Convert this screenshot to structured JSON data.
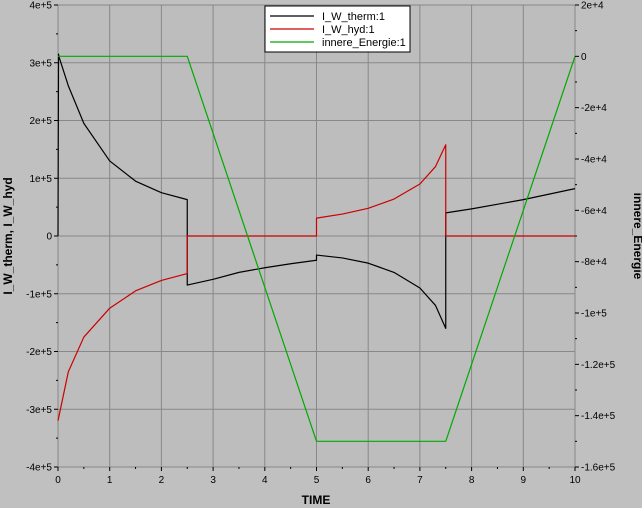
{
  "chart_data": {
    "type": "line",
    "xlabel": "TIME",
    "ylabel_left": "I_W_therm, I_W_hyd",
    "ylabel_right": "innere_Energie",
    "xlim": [
      0,
      10
    ],
    "ylim_left": [
      -400000,
      400000
    ],
    "ylim_right": [
      -160000,
      20000
    ],
    "x_ticks": [
      0,
      1,
      2,
      3,
      4,
      5,
      6,
      7,
      8,
      9,
      10
    ],
    "x_tick_labels": [
      "0",
      "1",
      "2",
      "3",
      "4",
      "5",
      "6",
      "7",
      "8",
      "9",
      "10"
    ],
    "y_left_ticks": [
      400000,
      300000,
      200000,
      100000,
      0,
      -100000,
      -200000,
      -300000,
      -400000
    ],
    "y_left_tick_labels": [
      "4e+5",
      "3e+5",
      "2e+5",
      "1e+5",
      "0",
      "-1e+5",
      "-2e+5",
      "-3e+5",
      "-4e+5"
    ],
    "y_right_ticks": [
      20000,
      0,
      -20000,
      -40000,
      -60000,
      -80000,
      -100000,
      -120000,
      -140000,
      -160000
    ],
    "y_right_tick_labels": [
      "2e+4",
      "0",
      "-2e+4",
      "-4e+4",
      "-6e+4",
      "-8e+4",
      "-1e+5",
      "-1.2e+5",
      "-1.4e+5",
      "-1.6e+5"
    ],
    "grid": true,
    "legend_position": "top-center",
    "series": [
      {
        "name": "I_W_therm:1",
        "color": "#000000",
        "axis": "left",
        "x": [
          0,
          0.01,
          0.02,
          0.2,
          0.5,
          1.0,
          1.5,
          2.0,
          2.5,
          2.5,
          3.0,
          3.5,
          4.0,
          4.5,
          5.0,
          5.0,
          5.5,
          6.0,
          6.5,
          7.0,
          7.3,
          7.5,
          7.5,
          8.0,
          9.0,
          10.0
        ],
        "y": [
          0,
          315000,
          310000,
          260000,
          195000,
          130000,
          95000,
          75000,
          63000,
          -85000,
          -75000,
          -63000,
          -55000,
          -48000,
          -42000,
          -33000,
          -38000,
          -47000,
          -63000,
          -90000,
          -120000,
          -160000,
          40000,
          47000,
          63000,
          82000
        ]
      },
      {
        "name": "I_W_hyd:1",
        "color": "#cc0000",
        "axis": "left",
        "x": [
          0,
          0.2,
          0.5,
          1.0,
          1.5,
          2.0,
          2.5,
          2.5,
          5.0,
          5.0,
          5.5,
          6.0,
          6.5,
          7.0,
          7.3,
          7.5,
          7.5,
          10.0
        ],
        "y": [
          -320000,
          -235000,
          -175000,
          -125000,
          -95000,
          -77000,
          -65000,
          0,
          0,
          31000,
          38000,
          48000,
          64000,
          90000,
          120000,
          158000,
          0,
          0
        ]
      },
      {
        "name": "innere_Energie:1",
        "color": "#00aa00",
        "axis": "right",
        "x": [
          0,
          2.5,
          5.0,
          7.5,
          10.0
        ],
        "y": [
          0,
          0,
          -150000,
          -150000,
          0
        ]
      }
    ]
  }
}
